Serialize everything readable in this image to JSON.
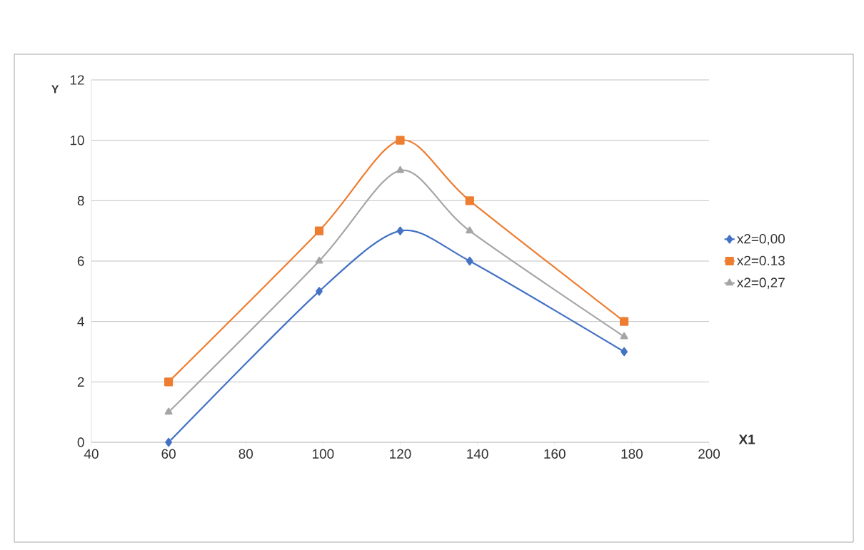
{
  "chart_data": {
    "type": "line",
    "xlabel": "X1",
    "ylabel": "Y",
    "x": [
      60,
      99,
      120,
      138,
      178
    ],
    "series": [
      {
        "name": "x2=0,00",
        "color": "#4472c4",
        "marker": "diamond",
        "values": [
          0,
          5,
          7,
          6,
          3
        ]
      },
      {
        "name": "x2=0.13",
        "color": "#ed7d31",
        "marker": "square",
        "values": [
          2,
          7,
          10,
          8,
          4
        ]
      },
      {
        "name": "x2=0,27",
        "color": "#a5a5a5",
        "marker": "triangle",
        "values": [
          1,
          6,
          9,
          7,
          3.5
        ]
      }
    ],
    "xlim": [
      40,
      200
    ],
    "xticks": [
      40,
      60,
      80,
      100,
      120,
      140,
      160,
      180,
      200
    ],
    "ylim": [
      0,
      12
    ],
    "yticks": [
      0,
      2,
      4,
      6,
      8,
      10,
      12
    ],
    "grid": "y",
    "legend": "right",
    "line_style": "solid"
  }
}
